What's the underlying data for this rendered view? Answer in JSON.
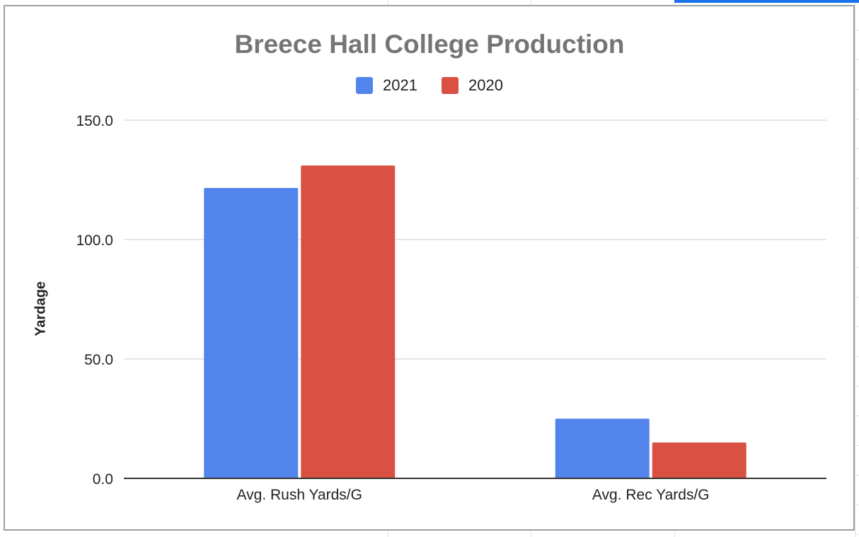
{
  "chart_data": {
    "type": "bar",
    "title": "Breece Hall College Production",
    "xlabel": "",
    "ylabel": "Yardage",
    "categories": [
      "Avg. Rush Yards/G",
      "Avg. Rec Yards/G"
    ],
    "series": [
      {
        "name": "2021",
        "values": [
          121.6,
          25.0
        ],
        "color": "#5384eb"
      },
      {
        "name": "2020",
        "values": [
          131.0,
          15.0
        ],
        "color": "#d95142"
      }
    ],
    "ylim": [
      0,
      150
    ],
    "yticks": [
      0,
      50,
      100,
      150
    ],
    "ytick_labels": [
      "0.0",
      "50.0",
      "100.0",
      "150.0"
    ],
    "grid": true,
    "legend_position": "top"
  },
  "colors": {
    "title": "#757575",
    "gridline": "#cccccc",
    "axis": "#333333"
  }
}
